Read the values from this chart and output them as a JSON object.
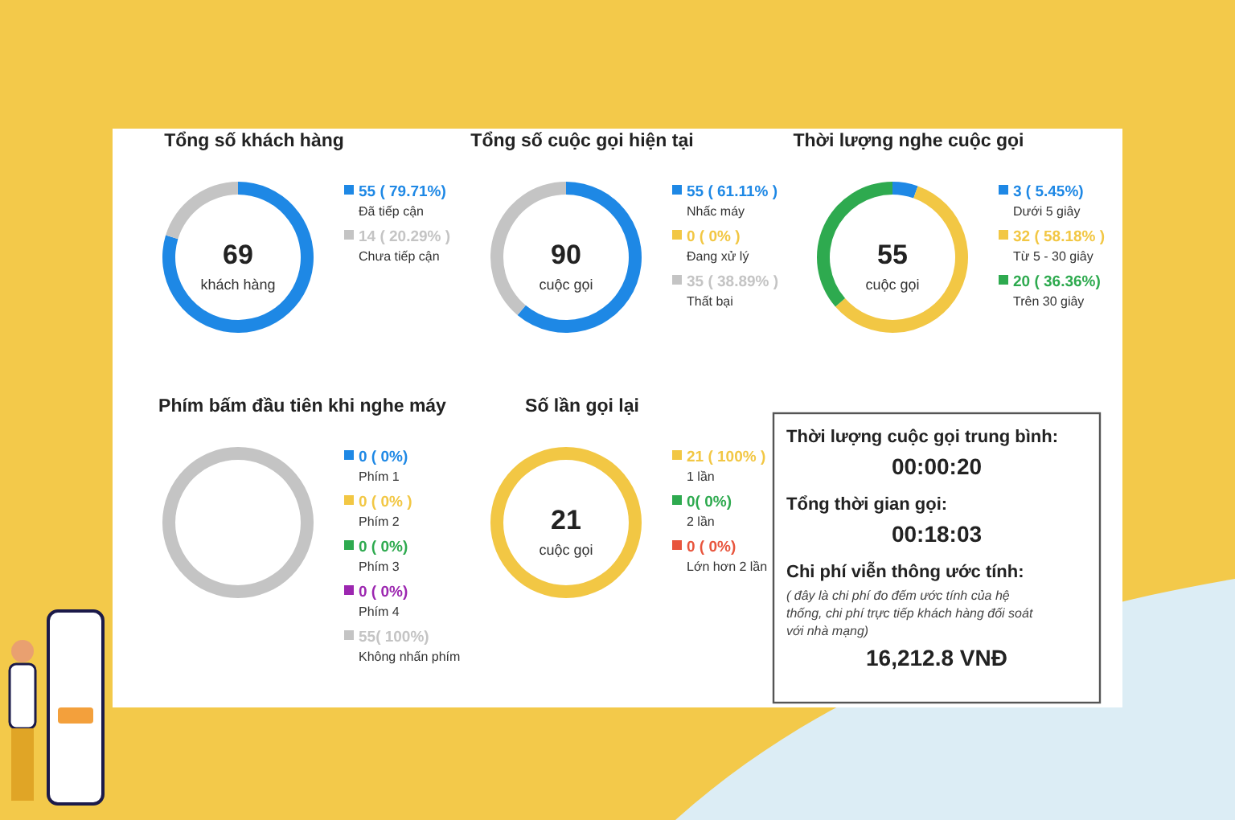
{
  "chart_data": [
    {
      "type": "donut",
      "title": "Tổng số khách hàng",
      "categories": [
        "Đã tiếp cận",
        "Chưa tiếp cận"
      ],
      "values": [
        55,
        14
      ],
      "colors": [
        "#1e88e5",
        "#c4c4c4"
      ],
      "value_labels": [
        "55 ( 79.71%)",
        "14 ( 20.29% )"
      ],
      "annotations": [
        "69",
        "khách hàng"
      ],
      "legend": "right"
    },
    {
      "type": "donut",
      "title": "Tổng số cuộc gọi hiện tại",
      "categories": [
        "Nhấc máy",
        "Đang xử lý",
        "Thất bại"
      ],
      "values": [
        55,
        0,
        35
      ],
      "colors": [
        "#1e88e5",
        "#f2c744",
        "#c4c4c4"
      ],
      "value_labels": [
        "55 ( 61.11% )",
        "0 ( 0% )",
        "35 ( 38.89% )"
      ],
      "annotations": [
        "90",
        "cuộc gọi"
      ],
      "legend": "right"
    },
    {
      "type": "donut",
      "title": "Thời lượng nghe cuộc gọi",
      "categories": [
        "Dưới 5 giây",
        "Từ 5 - 30 giây",
        "Trên 30 giây"
      ],
      "values": [
        3,
        32,
        20
      ],
      "colors": [
        "#1e88e5",
        "#f2c744",
        "#2eaa4f"
      ],
      "value_labels": [
        "3 ( 5.45%)",
        "32 ( 58.18% )",
        "20 ( 36.36%)"
      ],
      "annotations": [
        "55",
        "cuộc gọi"
      ],
      "legend": "right"
    },
    {
      "type": "donut",
      "title": "Phím bấm đầu tiên khi nghe máy",
      "categories": [
        "Phím 1",
        "Phím 2",
        "Phím 3",
        "Phím 4",
        "Không nhấn phím"
      ],
      "values": [
        0,
        0,
        0,
        0,
        55
      ],
      "colors": [
        "#1e88e5",
        "#f2c744",
        "#2eaa4f",
        "#9c27b0",
        "#c4c4c4"
      ],
      "value_labels": [
        "0 ( 0%)",
        "0 ( 0% )",
        "0 ( 0%)",
        "0 ( 0%)",
        "55( 100%)"
      ],
      "legend": "right"
    },
    {
      "type": "donut",
      "title": "Số lần gọi lại",
      "categories": [
        "1 lần",
        "2 lần",
        "Lớn hơn 2 lần"
      ],
      "values": [
        21,
        0,
        0
      ],
      "colors": [
        "#f2c744",
        "#2eaa4f",
        "#e8553d"
      ],
      "value_labels": [
        "21 ( 100% )",
        "0( 0%)",
        "0 ( 0%)"
      ],
      "annotations": [
        "21",
        "cuộc gọi"
      ],
      "legend": "right"
    },
    {
      "type": "other",
      "annotations": [
        "Thời lượng cuộc gọi trung bình:",
        "00:00:20",
        "Tổng thời gian gọi:",
        "00:18:03",
        "Chi phí viễn thông ước tính:",
        "( đây là chi phí đo đếm ước tính của hệ thống, chi phí trực tiếp khách hàng đối soát với nhà mạng)",
        "16,212.8 VNĐ"
      ]
    }
  ]
}
